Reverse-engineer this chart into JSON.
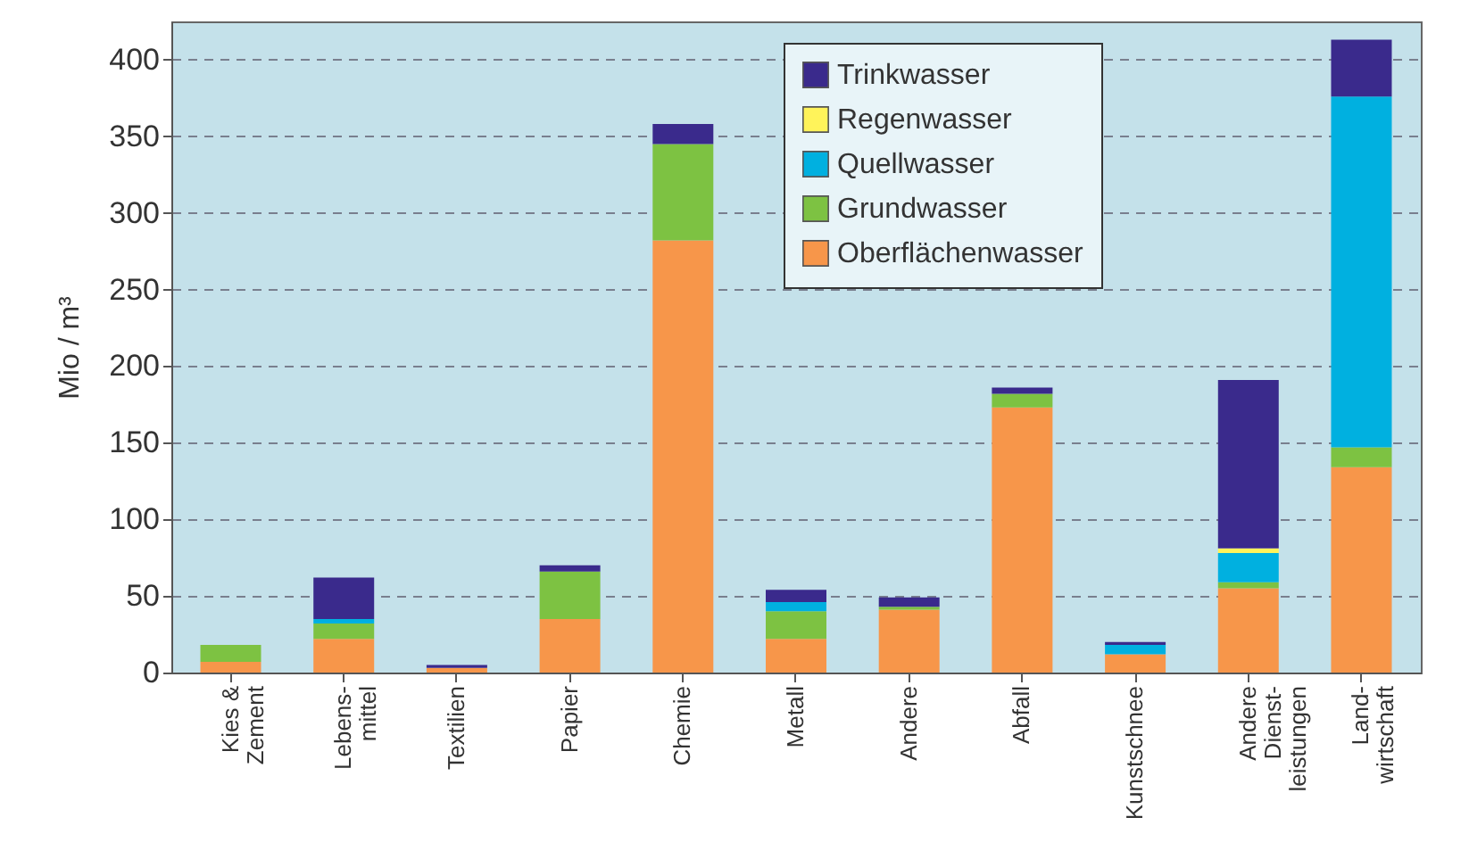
{
  "chart_data": {
    "type": "bar",
    "stacked": true,
    "ylabel": "Mio / m³",
    "categories": [
      "Kies &\nZement",
      "Lebens-\nmittel",
      "Textilien",
      "Papier",
      "Chemie",
      "Metall",
      "Andere",
      "Abfall",
      "Kunstschnee",
      "Andere\nDienst-\nleistungen",
      "Land-\nwirtschaft"
    ],
    "series": [
      {
        "name": "Oberflächenwasser",
        "color": "#f7964a",
        "values": [
          7,
          22,
          3,
          35,
          282,
          22,
          41,
          173,
          12,
          55,
          134
        ]
      },
      {
        "name": "Grundwasser",
        "color": "#7dc242",
        "values": [
          11,
          10,
          0,
          31,
          63,
          18,
          2,
          9,
          0,
          4,
          13
        ]
      },
      {
        "name": "Quellwasser",
        "color": "#00b0e0",
        "values": [
          0,
          3,
          0,
          0,
          0,
          6,
          0,
          0,
          6,
          19,
          229
        ]
      },
      {
        "name": "Regenwasser",
        "color": "#fff35a",
        "values": [
          0,
          0,
          0,
          0,
          0,
          0,
          0,
          0,
          0,
          3,
          0
        ]
      },
      {
        "name": "Trinkwasser",
        "color": "#3a2a8c",
        "values": [
          0,
          27,
          2,
          4,
          13,
          8,
          6,
          4,
          2,
          110,
          37
        ]
      }
    ],
    "ylim": [
      0,
      425
    ],
    "yticks": [
      0,
      50,
      100,
      150,
      200,
      250,
      300,
      350,
      400
    ],
    "grid": "y",
    "legend": "top right"
  }
}
